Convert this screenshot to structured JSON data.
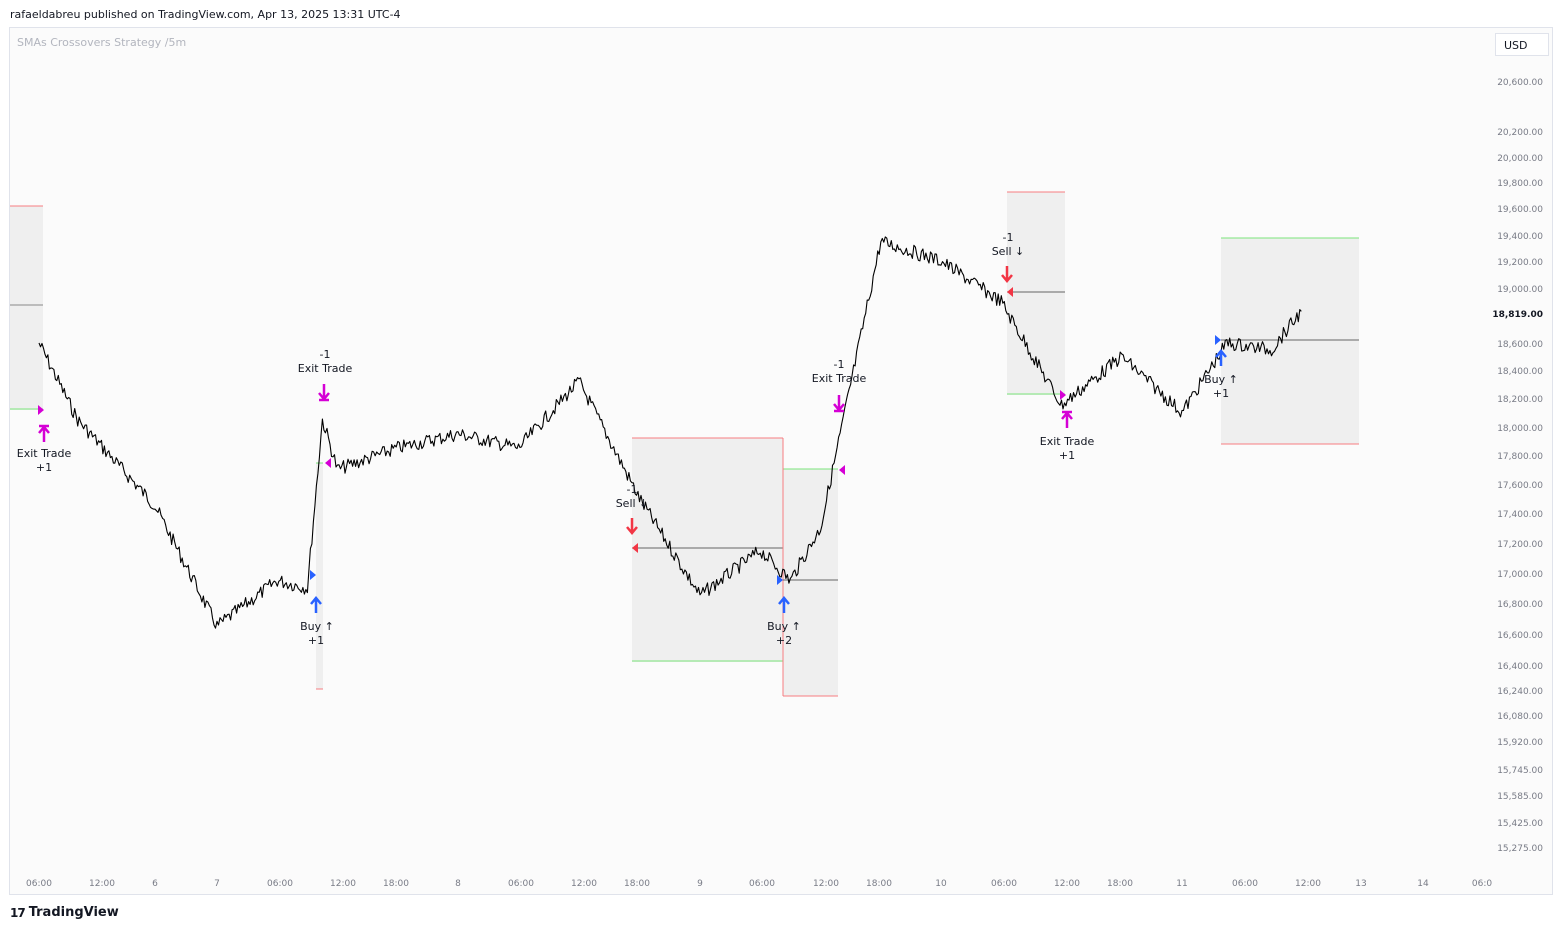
{
  "header": {
    "published": "rafaeldabreu published on TradingView.com, Apr 13, 2025 13:31 UTC-4"
  },
  "study": {
    "title": "SMAs Crossovers Strategy /5m"
  },
  "currency": {
    "label": "USD"
  },
  "footer": {
    "brand": "TradingView",
    "logo_glyph": "17"
  },
  "colors": {
    "price": "#000000",
    "buy": "#2962ff",
    "sell": "#f23645",
    "exit": "#d500d5",
    "stop": "#f77c80",
    "target": "#7be47b",
    "zone": "#efefef"
  },
  "chart_data": {
    "type": "line",
    "title": "SMAs Crossovers Strategy /5m",
    "last_price": "18,819.00",
    "y_ticks": [
      "20,600.00",
      "20,200.00",
      "20,000.00",
      "19,800.00",
      "19,600.00",
      "19,400.00",
      "19,200.00",
      "19,000.00",
      "18,600.00",
      "18,400.00",
      "18,200.00",
      "18,000.00",
      "17,800.00",
      "17,600.00",
      "17,400.00",
      "17,200.00",
      "17,000.00",
      "16,800.00",
      "16,600.00",
      "16,400.00",
      "16,240.00",
      "16,080.00",
      "15,920.00",
      "15,745.00",
      "15,585.00",
      "15,425.00",
      "15,275.00"
    ],
    "x_ticks": [
      "06:00",
      "12:00",
      "6",
      "7",
      "06:00",
      "12:00",
      "18:00",
      "8",
      "06:00",
      "12:00",
      "18:00",
      "9",
      "06:00",
      "12:00",
      "18:00",
      "10",
      "06:00",
      "12:00",
      "18:00",
      "11",
      "06:00",
      "12:00",
      "13",
      "14",
      "06:0"
    ],
    "series": [
      {
        "x": [
          "Apr 5 06:00",
          "Apr 5 12:00",
          "Apr 6 00:00",
          "Apr 7 00:00",
          "Apr 7 06:00",
          "Apr 7 09:00",
          "Apr 7 10:30",
          "Apr 7 12:00",
          "Apr 7 18:00",
          "Apr 8 00:00",
          "Apr 8 06:00",
          "Apr 8 12:00",
          "Apr 8 18:00",
          "Apr 9 00:00",
          "Apr 9 06:00",
          "Apr 9 09:00",
          "Apr 9 12:00",
          "Apr 9 18:00",
          "Apr 10 00:00",
          "Apr 10 06:00",
          "Apr 10 12:00",
          "Apr 10 18:00",
          "Apr 11 00:00",
          "Apr 11 06:00",
          "Apr 11 12:00",
          "Apr 11 16:00"
        ],
        "y": [
          18600,
          18050,
          17450,
          16650,
          16950,
          16900,
          18050,
          17700,
          17850,
          17950,
          17850,
          18320,
          17500,
          16850,
          17150,
          16950,
          17300,
          19350,
          19200,
          18900,
          18150,
          18500,
          18100,
          18600,
          18550,
          18830
        ]
      }
    ],
    "trades": [
      {
        "label": "Exit Trade",
        "qty": "+1"
      },
      {
        "label": "Buy ↑",
        "qty": "+1"
      },
      {
        "label": "Exit Trade",
        "qty": "-1"
      },
      {
        "label": "Sell ↓",
        "qty": "-1"
      },
      {
        "label": "Buy ↑",
        "qty": "+2"
      },
      {
        "label": "Exit Trade",
        "qty": "-1"
      },
      {
        "label": "Sell ↓",
        "qty": "-1"
      },
      {
        "label": "Exit Trade",
        "qty": "+1"
      },
      {
        "label": "Buy ↑",
        "qty": "+1"
      }
    ]
  }
}
